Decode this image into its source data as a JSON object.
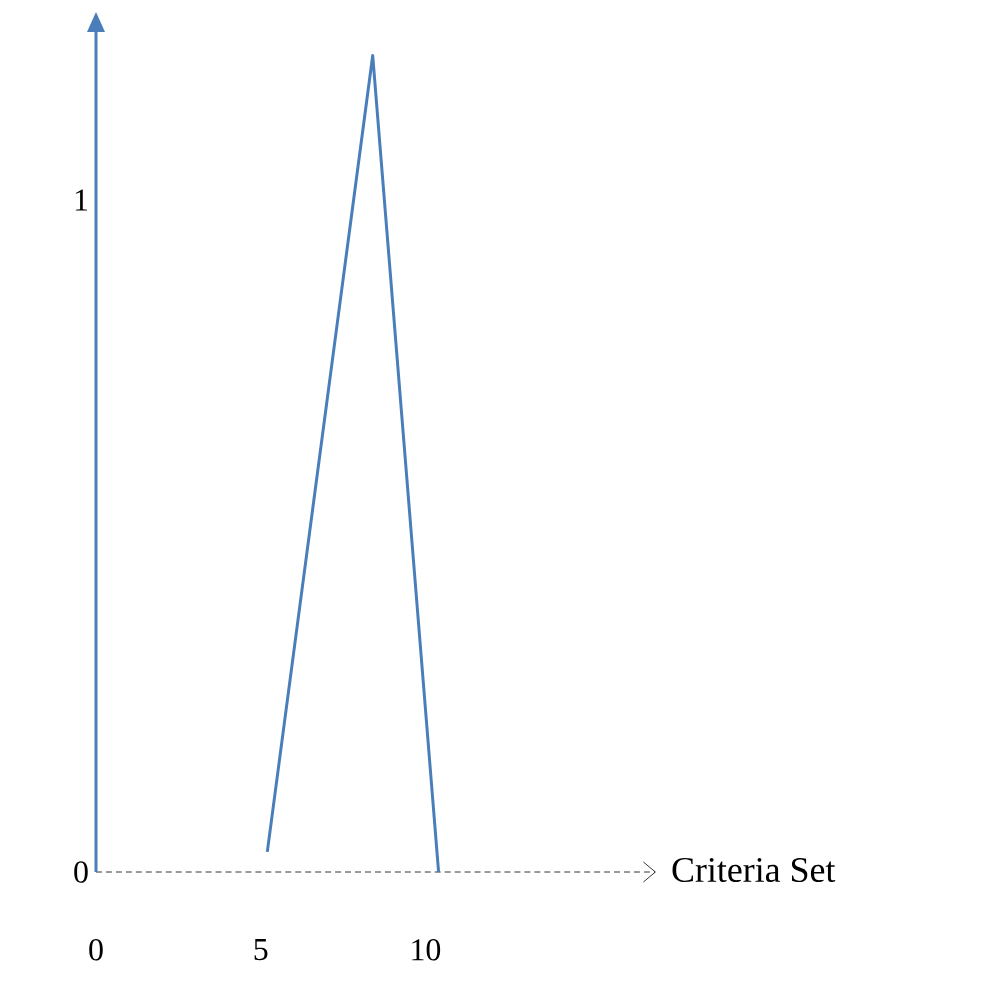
{
  "chart_data": {
    "type": "line",
    "xlabel": "Criteria Set",
    "x": [
      5.2,
      8.4,
      10.4
    ],
    "values": [
      0.03,
      1.215,
      0
    ],
    "color": "#4a7ebb",
    "xlim": [
      0,
      17
    ],
    "ylim": [
      0,
      1.25
    ],
    "xticks": [
      0,
      5,
      10
    ],
    "yticks": [
      0,
      1
    ]
  }
}
